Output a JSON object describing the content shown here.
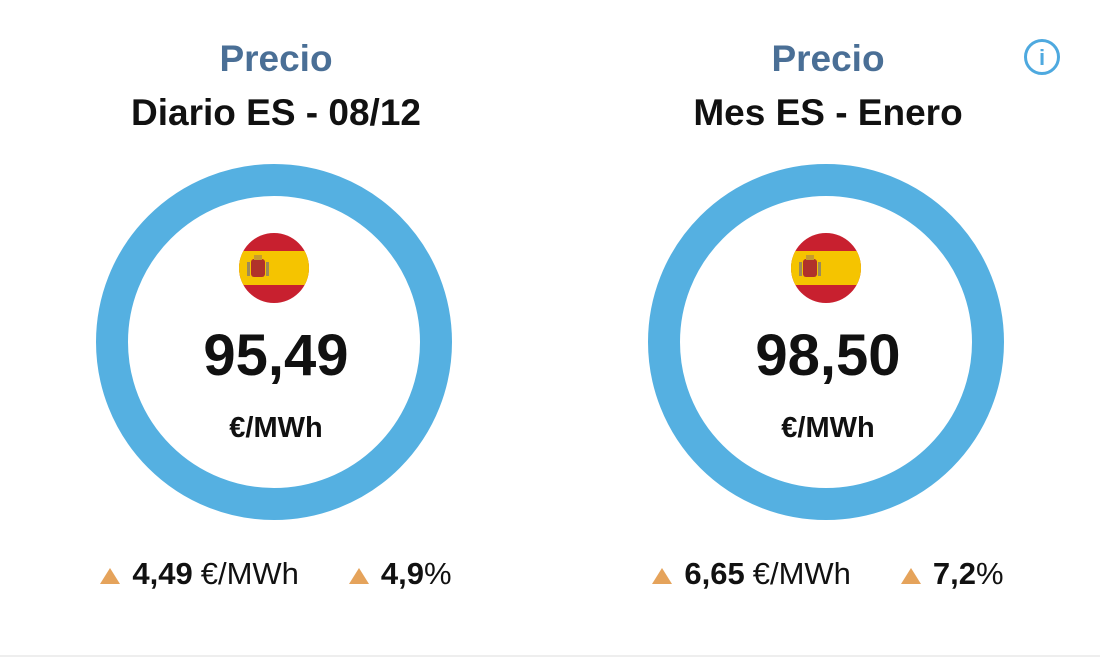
{
  "info_icon": "i",
  "cards": [
    {
      "title": "Precio",
      "subtitle": "Diario ES - 08/12",
      "value": "95,49",
      "unit": "€/MWh",
      "change": {
        "amount": "4,49",
        "amount_unit": "€/MWh",
        "percent": "4,9",
        "percent_unit": "%"
      }
    },
    {
      "title": "Precio",
      "subtitle": "Mes ES - Enero",
      "value": "98,50",
      "unit": "€/MWh",
      "change": {
        "amount": "6,65",
        "amount_unit": "€/MWh",
        "percent": "7,2",
        "percent_unit": "%"
      }
    }
  ]
}
